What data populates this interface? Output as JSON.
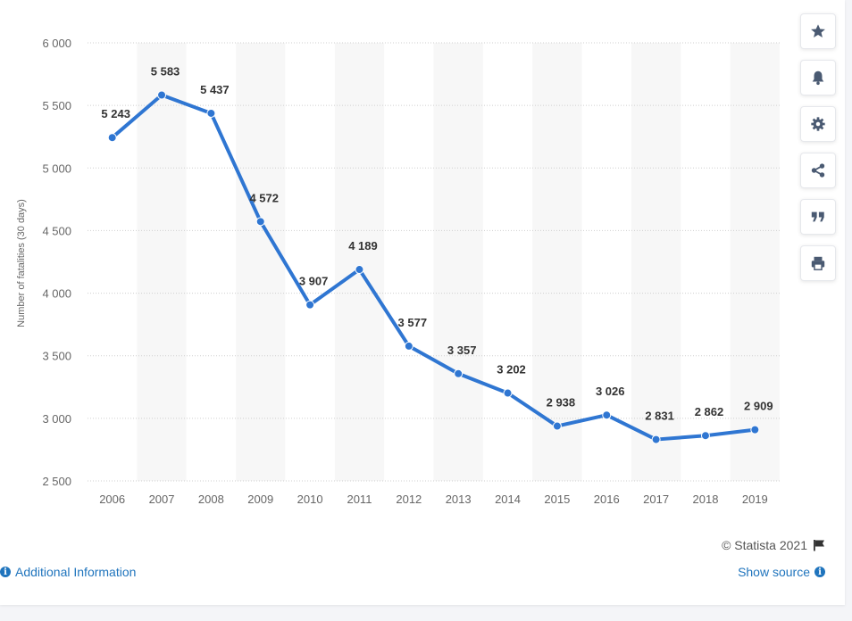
{
  "chart_data": {
    "type": "line",
    "title": "",
    "xlabel": "",
    "ylabel": "Number of fatalities (30 days)",
    "categories": [
      "2006",
      "2007",
      "2008",
      "2009",
      "2010",
      "2011",
      "2012",
      "2013",
      "2014",
      "2015",
      "2016",
      "2017",
      "2018",
      "2019"
    ],
    "series": [
      {
        "values": [
          5243,
          5583,
          5437,
          4572,
          3907,
          4189,
          3577,
          3357,
          3202,
          2938,
          3026,
          2831,
          2862,
          2909
        ],
        "labels": [
          "5 243",
          "5 583",
          "5 437",
          "4 572",
          "3 907",
          "4 189",
          "3 577",
          "3 357",
          "3 202",
          "2 938",
          "3 026",
          "2 831",
          "2 862",
          "2 909"
        ],
        "color": "#2f76d2"
      }
    ],
    "ylim": [
      2500,
      6000
    ],
    "yticks": [
      2500,
      3000,
      3500,
      4000,
      4500,
      5000,
      5500,
      6000
    ],
    "ytick_labels": [
      "2 500",
      "3 000",
      "3 500",
      "4 000",
      "4 500",
      "5 000",
      "5 500",
      "6 000"
    ],
    "grid": true,
    "legend": "none"
  },
  "toolbar": {
    "buttons": [
      {
        "name": "favorite-button",
        "icon": "star-icon"
      },
      {
        "name": "notification-button",
        "icon": "bell-icon"
      },
      {
        "name": "settings-button",
        "icon": "gear-icon"
      },
      {
        "name": "share-button",
        "icon": "share-icon"
      },
      {
        "name": "cite-button",
        "icon": "quote-icon"
      },
      {
        "name": "print-button",
        "icon": "print-icon"
      }
    ],
    "icon_color": "#4a5a72"
  },
  "footer": {
    "credit": "© Statista 2021",
    "additional_info": "Additional Information",
    "show_source": "Show source"
  }
}
